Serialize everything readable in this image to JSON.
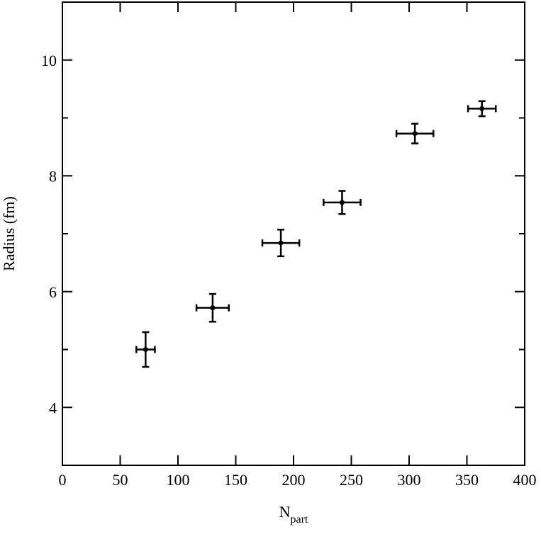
{
  "chart_data": {
    "type": "scatter",
    "xlabel": "N",
    "xlabel_sub": "part",
    "ylabel": "Radius  (fm)",
    "x": [
      72,
      130,
      189,
      242,
      305,
      363
    ],
    "values": [
      5.0,
      5.72,
      6.84,
      7.54,
      8.73,
      9.16
    ],
    "xerr": [
      8,
      14,
      16,
      16,
      16,
      12
    ],
    "yerr": [
      0.3,
      0.24,
      0.23,
      0.2,
      0.17,
      0.13
    ],
    "color": "#000000",
    "xlim": [
      0,
      400
    ],
    "xticks": [
      0,
      50,
      100,
      150,
      200,
      250,
      300,
      350,
      400
    ],
    "ylim": [
      3,
      11
    ],
    "yticks": [
      4,
      6,
      8,
      10
    ],
    "yminor_ticks": [
      5,
      7,
      9
    ],
    "grid": false
  }
}
